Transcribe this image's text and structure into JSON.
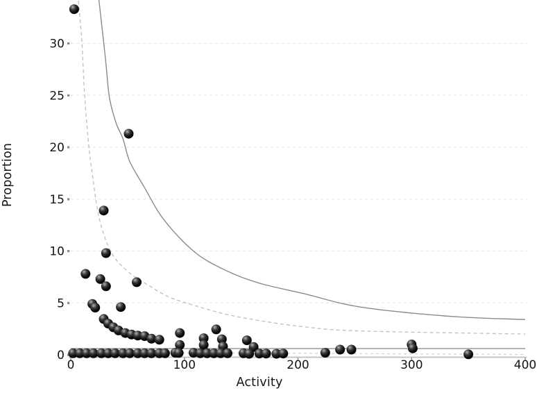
{
  "chart_data": {
    "type": "scatter",
    "title": "",
    "xlabel": "Activity",
    "ylabel": "Proportion",
    "xlim": [
      0,
      400
    ],
    "ylim": [
      0,
      34.5
    ],
    "x_ticks": [
      0,
      100,
      200,
      300,
      400
    ],
    "y_ticks": [
      0,
      5,
      10,
      15,
      20,
      25,
      30
    ],
    "grid": {
      "horizontal": true,
      "style": "dashed",
      "color": "#e0e0e0"
    },
    "legend": null,
    "points": [
      [
        3,
        33.3
      ],
      [
        51,
        21.3
      ],
      [
        29,
        13.9
      ],
      [
        13,
        7.8
      ],
      [
        26,
        7.3
      ],
      [
        31,
        9.8
      ],
      [
        31,
        6.6
      ],
      [
        58,
        7.0
      ],
      [
        19,
        4.9
      ],
      [
        21.5,
        4.55
      ],
      [
        44,
        4.6
      ],
      [
        29,
        3.45
      ],
      [
        33,
        3.0
      ],
      [
        37.5,
        2.65
      ],
      [
        42,
        2.35
      ],
      [
        48,
        2.1
      ],
      [
        53.5,
        1.95
      ],
      [
        59,
        1.85
      ],
      [
        65,
        1.8
      ],
      [
        71,
        1.55
      ],
      [
        78,
        1.45
      ],
      [
        96,
        2.1
      ],
      [
        96,
        0.95
      ],
      [
        117,
        1.6
      ],
      [
        117,
        0.95
      ],
      [
        128,
        2.45
      ],
      [
        133,
        1.5
      ],
      [
        134,
        0.8
      ],
      [
        155,
        1.4
      ],
      [
        161,
        0.75
      ],
      [
        237,
        0.5
      ],
      [
        247,
        0.5
      ],
      [
        300,
        1.0
      ],
      [
        301,
        0.62
      ],
      [
        2,
        0.15
      ],
      [
        8,
        0.15
      ],
      [
        14,
        0.15
      ],
      [
        20,
        0.15
      ],
      [
        27,
        0.15
      ],
      [
        33,
        0.15
      ],
      [
        39,
        0.15
      ],
      [
        46,
        0.15
      ],
      [
        52,
        0.15
      ],
      [
        59,
        0.15
      ],
      [
        65,
        0.15
      ],
      [
        71,
        0.15
      ],
      [
        78,
        0.15
      ],
      [
        83,
        0.15
      ],
      [
        92,
        0.2
      ],
      [
        95,
        0.18
      ],
      [
        108,
        0.2
      ],
      [
        114,
        0.15
      ],
      [
        120,
        0.15
      ],
      [
        126,
        0.15
      ],
      [
        132,
        0.15
      ],
      [
        138,
        0.15
      ],
      [
        152,
        0.15
      ],
      [
        157,
        0.1
      ],
      [
        166,
        0.12
      ],
      [
        172,
        0.12
      ],
      [
        181,
        0.1
      ],
      [
        187,
        0.12
      ],
      [
        224,
        0.2
      ],
      [
        350,
        0.05
      ]
    ],
    "point_style": {
      "radius": 7,
      "fill_dark": "#060606",
      "fill_mid": "#3a3a3a",
      "highlight": "#b2b2b2"
    },
    "reference_lines": {
      "upper_limit_solid": {
        "style": "solid",
        "color": "#8a8a8a",
        "points": [
          [
            23,
            36.5
          ],
          [
            25,
            34
          ],
          [
            30.5,
            28.6
          ],
          [
            34,
            24.8
          ],
          [
            40,
            22.3
          ],
          [
            46,
            20.8
          ],
          [
            52,
            18.6
          ],
          [
            65,
            16.1
          ],
          [
            82,
            13.0
          ],
          [
            109,
            9.9
          ],
          [
            137,
            8.1
          ],
          [
            166,
            6.9
          ],
          [
            205,
            5.9
          ],
          [
            255,
            4.6
          ],
          [
            335,
            3.7
          ],
          [
            400,
            3.4
          ]
        ]
      },
      "upper_limit_dashed": {
        "style": "dashed",
        "color": "#bdbdbd",
        "points": [
          [
            6.3,
            36.5
          ],
          [
            6.7,
            34.2
          ],
          [
            9.8,
            30.2
          ],
          [
            12.2,
            25.0
          ],
          [
            15.9,
            20.1
          ],
          [
            18.9,
            17.5
          ],
          [
            25,
            13.2
          ],
          [
            35.4,
            9.9
          ],
          [
            49.5,
            8.1
          ],
          [
            64,
            7.0
          ],
          [
            86,
            5.6
          ],
          [
            110.5,
            4.7
          ],
          [
            137,
            3.9
          ],
          [
            166,
            3.3
          ],
          [
            205,
            2.7
          ],
          [
            255,
            2.3
          ],
          [
            400,
            2.0
          ]
        ]
      },
      "center_line": {
        "style": "solid",
        "color": "#9a9a9a",
        "points": [
          [
            0,
            0.6
          ],
          [
            400,
            0.6
          ]
        ]
      },
      "lower_limit_dashed": {
        "style": "dashed",
        "color": "#cfcfcf",
        "points": [
          [
            0,
            0.2
          ],
          [
            150,
            0.18
          ],
          [
            250,
            0.12
          ],
          [
            400,
            0.03
          ]
        ]
      }
    },
    "axis_colors": {
      "axis_line": "#c4c4c4",
      "tick_mark": "#8a8a8a",
      "label_text": "#141414"
    }
  }
}
